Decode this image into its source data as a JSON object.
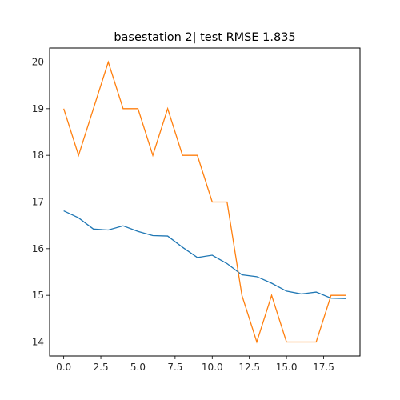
{
  "chart_data": {
    "type": "line",
    "title": "basestation 2| test RMSE 1.835",
    "xlabel": "",
    "ylabel": "",
    "xlim": [
      -0.95,
      19.95
    ],
    "ylim": [
      13.7,
      20.3
    ],
    "xticks": [
      0.0,
      2.5,
      5.0,
      7.5,
      10.0,
      12.5,
      15.0,
      17.5
    ],
    "xtick_labels": [
      "0.0",
      "2.5",
      "5.0",
      "7.5",
      "10.0",
      "12.5",
      "15.0",
      "17.5"
    ],
    "yticks": [
      14,
      15,
      16,
      17,
      18,
      19,
      20
    ],
    "ytick_labels": [
      "14",
      "15",
      "16",
      "17",
      "18",
      "19",
      "20"
    ],
    "grid": false,
    "x": [
      0,
      1,
      2,
      3,
      4,
      5,
      6,
      7,
      8,
      9,
      10,
      11,
      12,
      13,
      14,
      15,
      16,
      17,
      18,
      19
    ],
    "series": [
      {
        "color": "#1f77b4",
        "values": [
          16.81,
          16.66,
          16.42,
          16.4,
          16.49,
          16.37,
          16.28,
          16.27,
          16.03,
          15.81,
          15.86,
          15.68,
          15.44,
          15.4,
          15.26,
          15.09,
          15.03,
          15.07,
          14.94,
          14.93
        ]
      },
      {
        "color": "#ff7f0e",
        "values": [
          19,
          18,
          19,
          20,
          19,
          19,
          18,
          19,
          18,
          18,
          17,
          17,
          15,
          14,
          15,
          14,
          14,
          14,
          15,
          15
        ]
      }
    ]
  }
}
